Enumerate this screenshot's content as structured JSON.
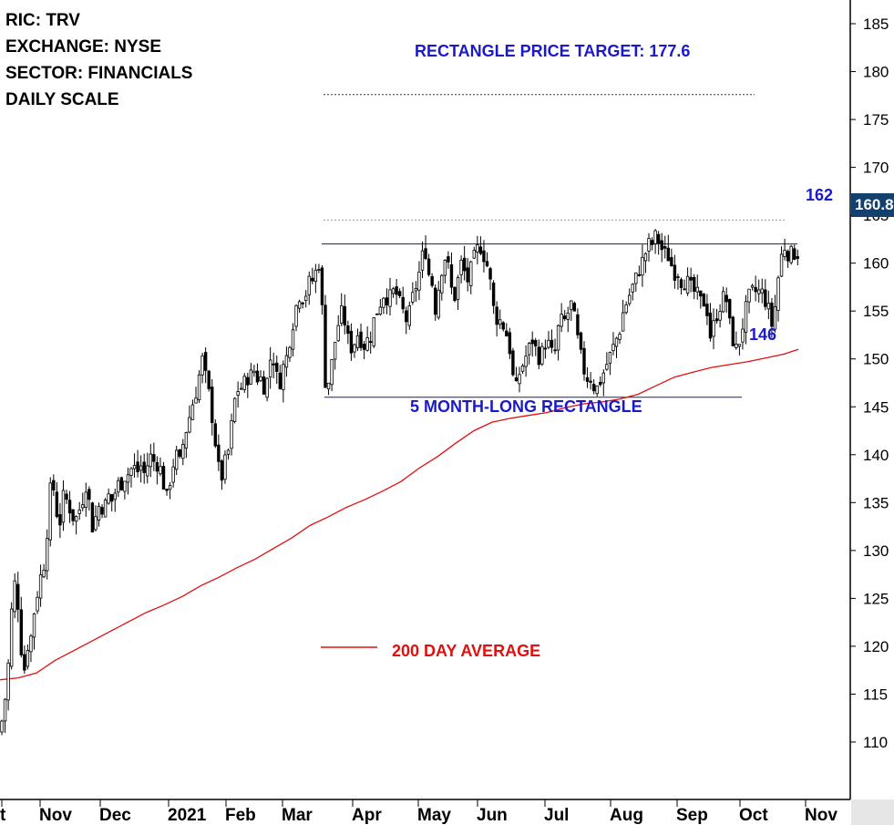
{
  "info": {
    "ric": "RIC: TRV",
    "exchange": "EXCHANGE: NYSE",
    "sector": "SECTOR: FINANCIALS",
    "scale": "DAILY SCALE"
  },
  "annotations": {
    "target": "RECTANGLE PRICE TARGET: 177.6",
    "upper": "162",
    "lower": "146",
    "pattern": "5 MONTH-LONG RECTANGLE",
    "ma_legend": "200 DAY AVERAGE",
    "last_price": "160.8"
  },
  "colors": {
    "candle": "#000000",
    "moving_average": "#e01010",
    "annotation": "#1a1acc",
    "badge": "#14406e"
  },
  "chart_data": {
    "type": "candlestick",
    "y_axis_side": "right",
    "ylim": [
      104,
      187
    ],
    "y_ticks": [
      110,
      115,
      120,
      125,
      130,
      135,
      140,
      145,
      150,
      155,
      160,
      165,
      170,
      175,
      180,
      185
    ],
    "x_tick_labels": [
      "t",
      "Nov",
      "Dec",
      "2021",
      "Feb",
      "Mar",
      "Apr",
      "May",
      "Jun",
      "Jul",
      "Aug",
      "Sep",
      "Oct",
      "Nov"
    ],
    "grid": false,
    "rectangle": {
      "upper": 162,
      "lower": 146,
      "start": "2021-03",
      "end": "2021-10"
    },
    "price_target": 177.6,
    "target_reference": 164.5,
    "last_price": 160.8,
    "close_path": [
      [
        0,
        111
      ],
      [
        5,
        114
      ],
      [
        10,
        119
      ],
      [
        14,
        126
      ],
      [
        18,
        127
      ],
      [
        22,
        121
      ],
      [
        26,
        117
      ],
      [
        30,
        120
      ],
      [
        34,
        121
      ],
      [
        38,
        124
      ],
      [
        42,
        126
      ],
      [
        46,
        128
      ],
      [
        50,
        129
      ],
      [
        54,
        136
      ],
      [
        58,
        137
      ],
      [
        62,
        134
      ],
      [
        66,
        133
      ],
      [
        70,
        136
      ],
      [
        74,
        135
      ],
      [
        78,
        134
      ],
      [
        82,
        133
      ],
      [
        86,
        134
      ],
      [
        90,
        135
      ],
      [
        94,
        137
      ],
      [
        98,
        135
      ],
      [
        102,
        132
      ],
      [
        106,
        134
      ],
      [
        110,
        135
      ],
      [
        114,
        134
      ],
      [
        118,
        136
      ],
      [
        122,
        135
      ],
      [
        126,
        136
      ],
      [
        130,
        137
      ],
      [
        134,
        137
      ],
      [
        138,
        138
      ],
      [
        142,
        138
      ],
      [
        146,
        139
      ],
      [
        150,
        138
      ],
      [
        154,
        139
      ],
      [
        158,
        138
      ],
      [
        162,
        139
      ],
      [
        166,
        140
      ],
      [
        170,
        139
      ],
      [
        174,
        139
      ],
      [
        178,
        138
      ],
      [
        182,
        135
      ],
      [
        186,
        137
      ],
      [
        190,
        139
      ],
      [
        194,
        140
      ],
      [
        198,
        139
      ],
      [
        202,
        142
      ],
      [
        206,
        143
      ],
      [
        210,
        145
      ],
      [
        214,
        146
      ],
      [
        218,
        148
      ],
      [
        222,
        150
      ],
      [
        226,
        148
      ],
      [
        230,
        146
      ],
      [
        234,
        143
      ],
      [
        238,
        140
      ],
      [
        242,
        137
      ],
      [
        246,
        139
      ],
      [
        250,
        140
      ],
      [
        254,
        143
      ],
      [
        258,
        146
      ],
      [
        262,
        147
      ],
      [
        266,
        147
      ],
      [
        270,
        148
      ],
      [
        274,
        148
      ],
      [
        278,
        149
      ],
      [
        282,
        148
      ],
      [
        286,
        148
      ],
      [
        290,
        147
      ],
      [
        294,
        148
      ],
      [
        298,
        151
      ],
      [
        302,
        149
      ],
      [
        306,
        147
      ],
      [
        310,
        149
      ],
      [
        314,
        150
      ],
      [
        318,
        152
      ],
      [
        322,
        154
      ],
      [
        326,
        156
      ],
      [
        330,
        157
      ],
      [
        334,
        156
      ],
      [
        338,
        158
      ],
      [
        342,
        158
      ],
      [
        346,
        159
      ],
      [
        350,
        160
      ],
      [
        352,
        161
      ],
      [
        355,
        149
      ],
      [
        358,
        147
      ],
      [
        362,
        148
      ],
      [
        366,
        151
      ],
      [
        370,
        153
      ],
      [
        374,
        155
      ],
      [
        378,
        154
      ],
      [
        382,
        152
      ],
      [
        386,
        151
      ],
      [
        390,
        152
      ],
      [
        394,
        153
      ],
      [
        398,
        151
      ],
      [
        402,
        152
      ],
      [
        406,
        152
      ],
      [
        410,
        154
      ],
      [
        414,
        155
      ],
      [
        418,
        156
      ],
      [
        422,
        157
      ],
      [
        426,
        156
      ],
      [
        430,
        157
      ],
      [
        434,
        157
      ],
      [
        438,
        156
      ],
      [
        442,
        155
      ],
      [
        446,
        154
      ],
      [
        450,
        155
      ],
      [
        454,
        157
      ],
      [
        458,
        158
      ],
      [
        462,
        160
      ],
      [
        466,
        162
      ],
      [
        470,
        159
      ],
      [
        474,
        158
      ],
      [
        478,
        155
      ],
      [
        482,
        158
      ],
      [
        486,
        160
      ],
      [
        490,
        161
      ],
      [
        494,
        158
      ],
      [
        498,
        156
      ],
      [
        502,
        158
      ],
      [
        506,
        160
      ],
      [
        510,
        159
      ],
      [
        514,
        158
      ],
      [
        518,
        160
      ],
      [
        522,
        161
      ],
      [
        526,
        162
      ],
      [
        530,
        161
      ],
      [
        534,
        160
      ],
      [
        538,
        158
      ],
      [
        542,
        155
      ],
      [
        546,
        154
      ],
      [
        550,
        154
      ],
      [
        554,
        153
      ],
      [
        558,
        152
      ],
      [
        562,
        149
      ],
      [
        565,
        146
      ],
      [
        568,
        148
      ],
      [
        572,
        149
      ],
      [
        576,
        150
      ],
      [
        580,
        151
      ],
      [
        584,
        152
      ],
      [
        588,
        151
      ],
      [
        592,
        150
      ],
      [
        596,
        151
      ],
      [
        600,
        152
      ],
      [
        604,
        151
      ],
      [
        608,
        150
      ],
      [
        612,
        153
      ],
      [
        616,
        154
      ],
      [
        620,
        154
      ],
      [
        624,
        155
      ],
      [
        628,
        156
      ],
      [
        632,
        153
      ],
      [
        636,
        151
      ],
      [
        640,
        149
      ],
      [
        644,
        148
      ],
      [
        648,
        148
      ],
      [
        652,
        147
      ],
      [
        656,
        147
      ],
      [
        660,
        148
      ],
      [
        664,
        149
      ],
      [
        668,
        150
      ],
      [
        672,
        151
      ],
      [
        676,
        152
      ],
      [
        680,
        153
      ],
      [
        684,
        155
      ],
      [
        688,
        156
      ],
      [
        692,
        157
      ],
      [
        696,
        158
      ],
      [
        700,
        159
      ],
      [
        704,
        160
      ],
      [
        708,
        161
      ],
      [
        712,
        162
      ],
      [
        716,
        162
      ],
      [
        720,
        163
      ],
      [
        724,
        162
      ],
      [
        728,
        161
      ],
      [
        732,
        161
      ],
      [
        736,
        160
      ],
      [
        740,
        159
      ],
      [
        744,
        159
      ],
      [
        748,
        158
      ],
      [
        752,
        158
      ],
      [
        756,
        158
      ],
      [
        760,
        157
      ],
      [
        764,
        157
      ],
      [
        768,
        156
      ],
      [
        772,
        156
      ],
      [
        776,
        155
      ],
      [
        780,
        152
      ],
      [
        784,
        154
      ],
      [
        788,
        155
      ],
      [
        792,
        156
      ],
      [
        796,
        157
      ],
      [
        800,
        154
      ],
      [
        804,
        152
      ],
      [
        808,
        151
      ],
      [
        812,
        152
      ],
      [
        816,
        154
      ],
      [
        820,
        156
      ],
      [
        824,
        157
      ],
      [
        828,
        157
      ],
      [
        832,
        157
      ],
      [
        836,
        157
      ],
      [
        840,
        156
      ],
      [
        844,
        155
      ],
      [
        848,
        153
      ],
      [
        852,
        157
      ],
      [
        856,
        160
      ],
      [
        860,
        162
      ],
      [
        864,
        161
      ],
      [
        868,
        161
      ],
      [
        872,
        161
      ],
      [
        876,
        161
      ]
    ],
    "moving_average_path": [
      [
        0,
        116.5
      ],
      [
        20,
        116.7
      ],
      [
        40,
        117.2
      ],
      [
        60,
        118.5
      ],
      [
        80,
        119.5
      ],
      [
        100,
        120.5
      ],
      [
        120,
        121.5
      ],
      [
        140,
        122.5
      ],
      [
        160,
        123.5
      ],
      [
        180,
        124.3
      ],
      [
        200,
        125.2
      ],
      [
        220,
        126.3
      ],
      [
        240,
        127.2
      ],
      [
        260,
        128.2
      ],
      [
        280,
        129.1
      ],
      [
        300,
        130.2
      ],
      [
        320,
        131.3
      ],
      [
        340,
        132.6
      ],
      [
        360,
        133.5
      ],
      [
        380,
        134.5
      ],
      [
        400,
        135.3
      ],
      [
        420,
        136.2
      ],
      [
        440,
        137.2
      ],
      [
        460,
        138.6
      ],
      [
        480,
        139.8
      ],
      [
        500,
        141.2
      ],
      [
        520,
        142.5
      ],
      [
        540,
        143.4
      ],
      [
        560,
        143.8
      ],
      [
        580,
        144.1
      ],
      [
        600,
        144.4
      ],
      [
        620,
        144.9
      ],
      [
        640,
        145.3
      ],
      [
        660,
        145.5
      ],
      [
        680,
        145.8
      ],
      [
        700,
        146.3
      ],
      [
        720,
        147.2
      ],
      [
        740,
        148.1
      ],
      [
        760,
        148.6
      ],
      [
        780,
        149.1
      ],
      [
        800,
        149.4
      ],
      [
        820,
        149.7
      ],
      [
        840,
        150.1
      ],
      [
        860,
        150.5
      ],
      [
        876,
        151.0
      ]
    ]
  }
}
